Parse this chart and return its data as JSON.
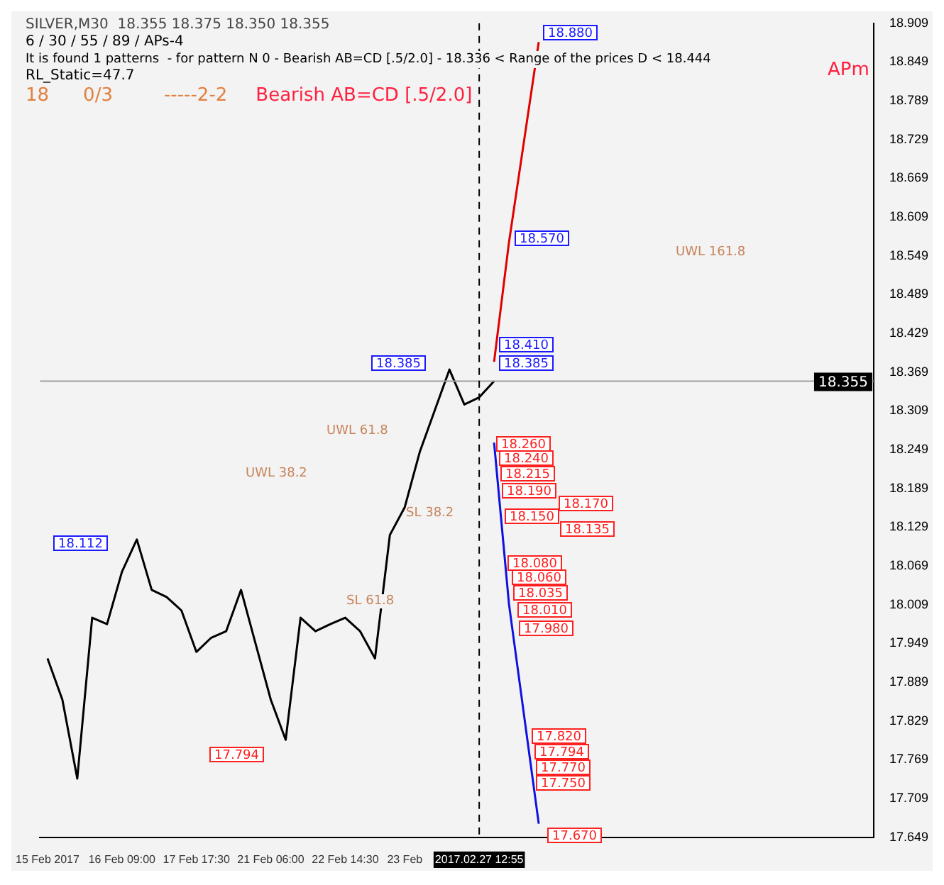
{
  "chart_data": {
    "type": "line",
    "title": "SILVER,M30  18.355 18.375 18.350 18.355",
    "categories": [
      "15 Feb 2017",
      null,
      null,
      null,
      null,
      "16 Feb 09:00",
      null,
      null,
      null,
      null,
      "17 Feb 17:30",
      null,
      null,
      null,
      null,
      "21 Feb 06:00",
      null,
      null,
      null,
      null,
      "22 Feb 14:30",
      null,
      null,
      null,
      "23 Feb",
      null,
      null,
      null,
      null,
      "2017.02.27 12:55",
      null,
      null,
      null,
      null,
      null,
      null,
      null,
      null,
      null,
      null,
      null,
      null,
      null,
      null,
      null,
      null,
      null,
      null,
      null,
      null,
      null,
      null,
      null,
      null,
      null,
      null
    ],
    "series": [
      {
        "color": "#000000",
        "values": [
          17.926,
          17.862,
          17.74,
          17.989,
          17.979,
          18.06,
          18.11,
          18.032,
          18.021,
          18.0,
          17.936,
          17.958,
          17.968,
          18.032,
          17.947,
          17.862,
          17.8,
          17.989,
          17.968,
          17.979,
          17.989,
          17.968,
          17.926,
          18.117,
          18.16,
          18.245,
          18.309,
          18.373,
          18.319,
          18.33,
          18.355,
          null,
          null,
          null,
          null,
          null,
          null,
          null,
          null,
          null,
          null,
          null,
          null,
          null,
          null,
          null,
          null,
          null,
          null,
          null,
          null,
          null,
          null,
          null,
          null,
          null
        ]
      },
      {
        "color": "#e00000",
        "values": [
          null,
          null,
          null,
          null,
          null,
          null,
          null,
          null,
          null,
          null,
          null,
          null,
          null,
          null,
          null,
          null,
          null,
          null,
          null,
          null,
          null,
          null,
          null,
          null,
          null,
          null,
          null,
          null,
          null,
          null,
          18.385,
          18.57,
          null,
          18.88,
          null,
          null,
          null,
          null,
          null,
          null,
          null,
          null,
          null,
          null,
          null,
          null,
          null,
          null,
          null,
          null,
          null,
          null,
          null,
          null,
          null,
          null
        ]
      },
      {
        "color": "#1010e0",
        "values": [
          null,
          null,
          null,
          null,
          null,
          null,
          null,
          null,
          null,
          null,
          null,
          null,
          null,
          null,
          null,
          null,
          null,
          null,
          null,
          null,
          null,
          null,
          null,
          null,
          null,
          null,
          null,
          null,
          null,
          null,
          18.26,
          18.01,
          null,
          17.67,
          null,
          null,
          null,
          null,
          null,
          null,
          null,
          null,
          null,
          null,
          null,
          null,
          null,
          null,
          null,
          null,
          null,
          null,
          null,
          null,
          null,
          null
        ]
      }
    ],
    "ylim": [
      17.649,
      18.909
    ],
    "yticks": [
      17.649,
      17.709,
      17.769,
      17.829,
      17.889,
      17.949,
      18.009,
      18.069,
      18.129,
      18.189,
      18.249,
      18.309,
      18.369,
      18.429,
      18.489,
      18.549,
      18.609,
      18.669,
      18.729,
      18.789,
      18.849,
      18.909
    ],
    "ref_lines": [
      {
        "axis": "y",
        "value": 18.355,
        "label": "18.355",
        "color": "#a0a0a0"
      },
      {
        "axis": "x",
        "value": "2017.02.27 12:55",
        "color": "#000000",
        "line_style": "dashed"
      }
    ],
    "annotations": [
      "6 / 30 / 55 / 89 / APs-4",
      "It is found 1 patterns  - for pattern N 0 - Bearish AB=CD [.5/2.0] - 18.336 < Range of the prices D < 18.444",
      "RL_Static=47.7",
      "18",
      "0/3",
      "-----2-2",
      "Bearish AB=CD [.5/2.0]",
      "APm",
      "UWL 161.8",
      "18.880",
      "18.570",
      "18.410",
      "18.385",
      "18.385",
      "18.112",
      "17.794",
      "18.260",
      "18.240",
      "18.215",
      "18.190",
      "18.170",
      "18.150",
      "18.135",
      "18.080",
      "18.060",
      "18.035",
      "18.010",
      "17.980",
      "17.820",
      "17.794",
      "17.770",
      "17.750",
      "17.670",
      "UWL 38.2",
      "UWL 61.8",
      "SL 38.2",
      "SL 61.8"
    ],
    "grid": false,
    "legend": false,
    "marker": "none",
    "line_style": "solid"
  }
}
